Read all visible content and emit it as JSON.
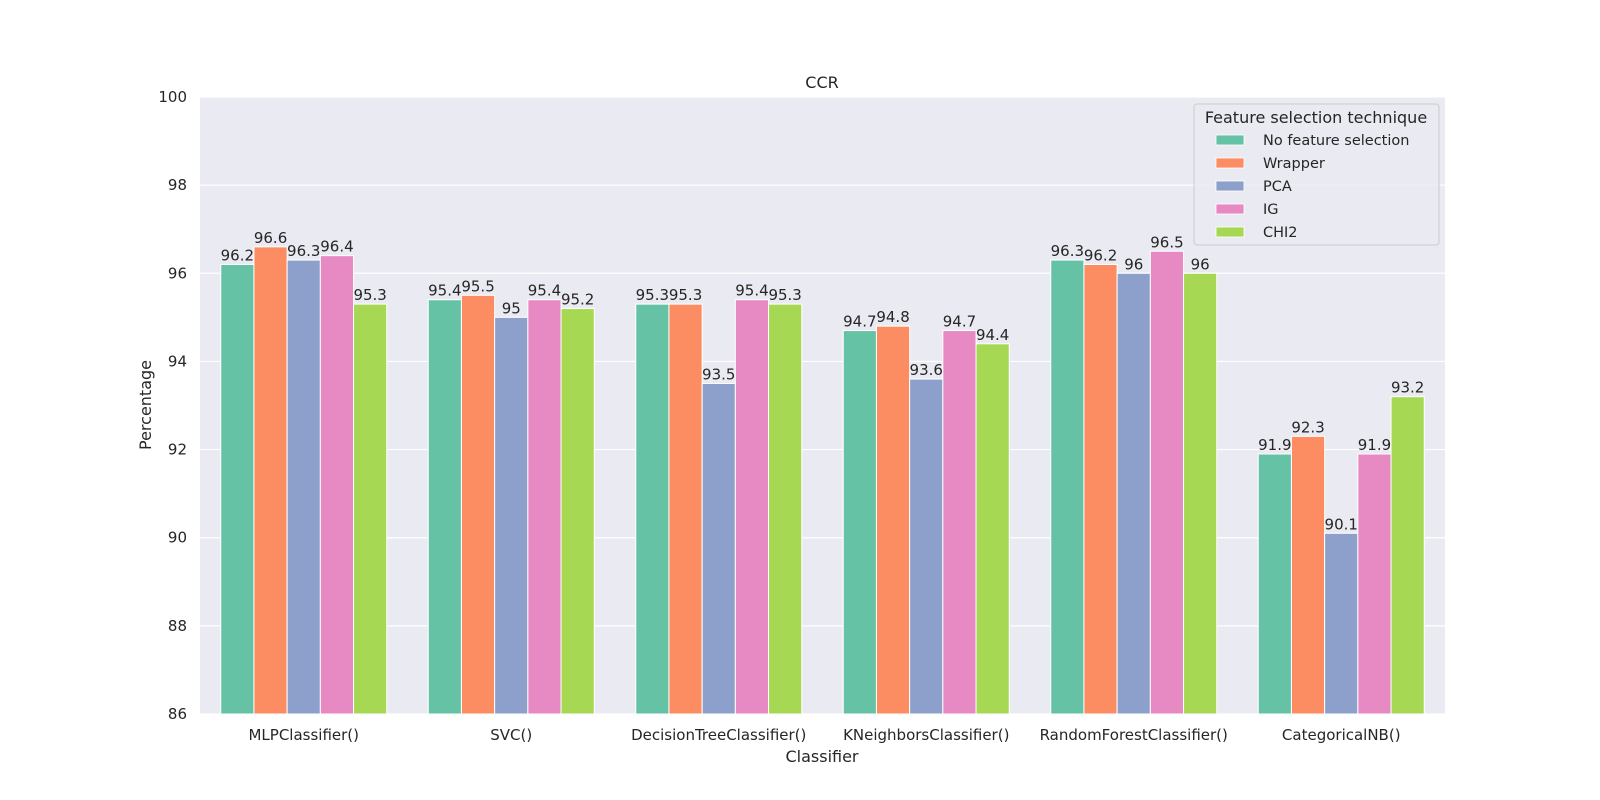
{
  "chart_data": {
    "type": "bar",
    "title": "CCR",
    "xlabel": "Classifier",
    "ylabel": "Percentage",
    "ylim": [
      86,
      100
    ],
    "yticks": [
      86,
      88,
      90,
      92,
      94,
      96,
      98,
      100
    ],
    "grid": true,
    "legend": {
      "title": "Feature selection technique",
      "placement": "top-right"
    },
    "categories": [
      "MLPClassifier()",
      "SVC()",
      "DecisionTreeClassifier()",
      "KNeighborsClassifier()",
      "RandomForestClassifier()",
      "CategoricalNB()"
    ],
    "series": [
      {
        "name": "No feature selection",
        "color": "#66c2a5",
        "values": [
          96.2,
          95.4,
          95.3,
          94.7,
          96.3,
          91.9
        ]
      },
      {
        "name": "Wrapper",
        "color": "#fc8d62",
        "values": [
          96.6,
          95.5,
          95.3,
          94.8,
          96.2,
          92.3
        ]
      },
      {
        "name": "PCA",
        "color": "#8da0cb",
        "values": [
          96.3,
          95.0,
          93.5,
          93.6,
          96.0,
          90.1
        ]
      },
      {
        "name": "IG",
        "color": "#e78ac3",
        "values": [
          96.4,
          95.4,
          95.4,
          94.7,
          96.5,
          91.9
        ]
      },
      {
        "name": "CHI2",
        "color": "#a6d854",
        "values": [
          95.3,
          95.2,
          95.3,
          94.4,
          96.0,
          93.2
        ]
      }
    ],
    "colors": {
      "plot_background": "#eaeaf2",
      "grid": "#ffffff"
    }
  }
}
